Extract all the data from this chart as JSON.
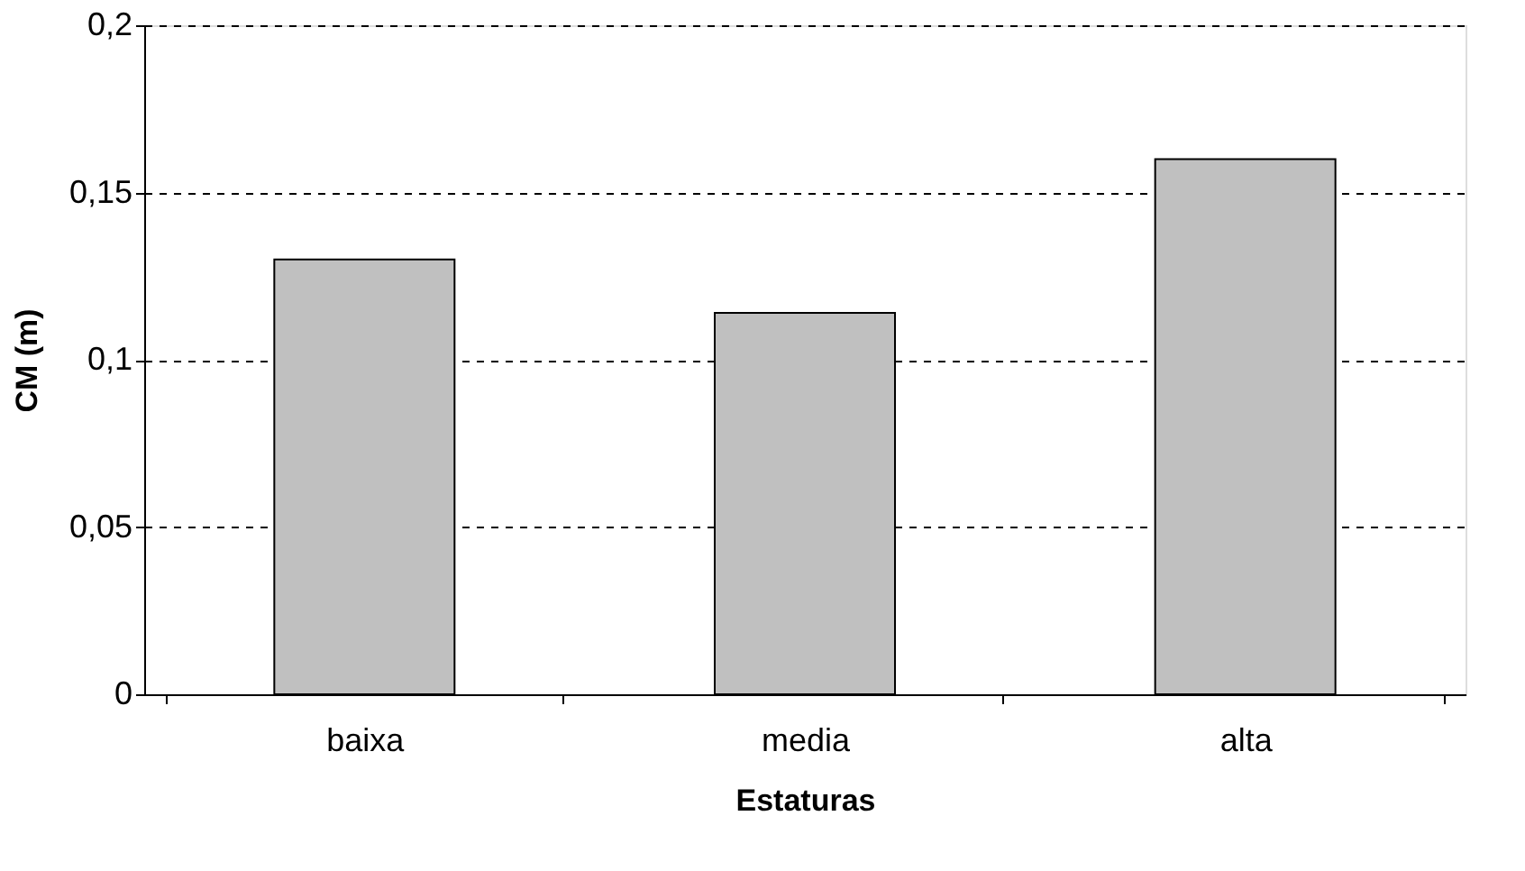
{
  "chart_data": {
    "type": "bar",
    "xlabel": "Estaturas",
    "ylabel": "CM (m)",
    "categories": [
      "baixa",
      "media",
      "alta"
    ],
    "values": [
      0.13,
      0.114,
      0.16
    ],
    "color": "#c0c0c0",
    "ylim": [
      0,
      0.2
    ],
    "yticks": [
      0,
      {
        "value": 0.05,
        "label": "0,05"
      },
      {
        "value": 0.1,
        "label": "0,1"
      },
      {
        "value": 0.15,
        "label": "0,15"
      },
      {
        "value": 0.2,
        "label": "0,2"
      }
    ],
    "grid": "y",
    "line_style": "dashed"
  }
}
